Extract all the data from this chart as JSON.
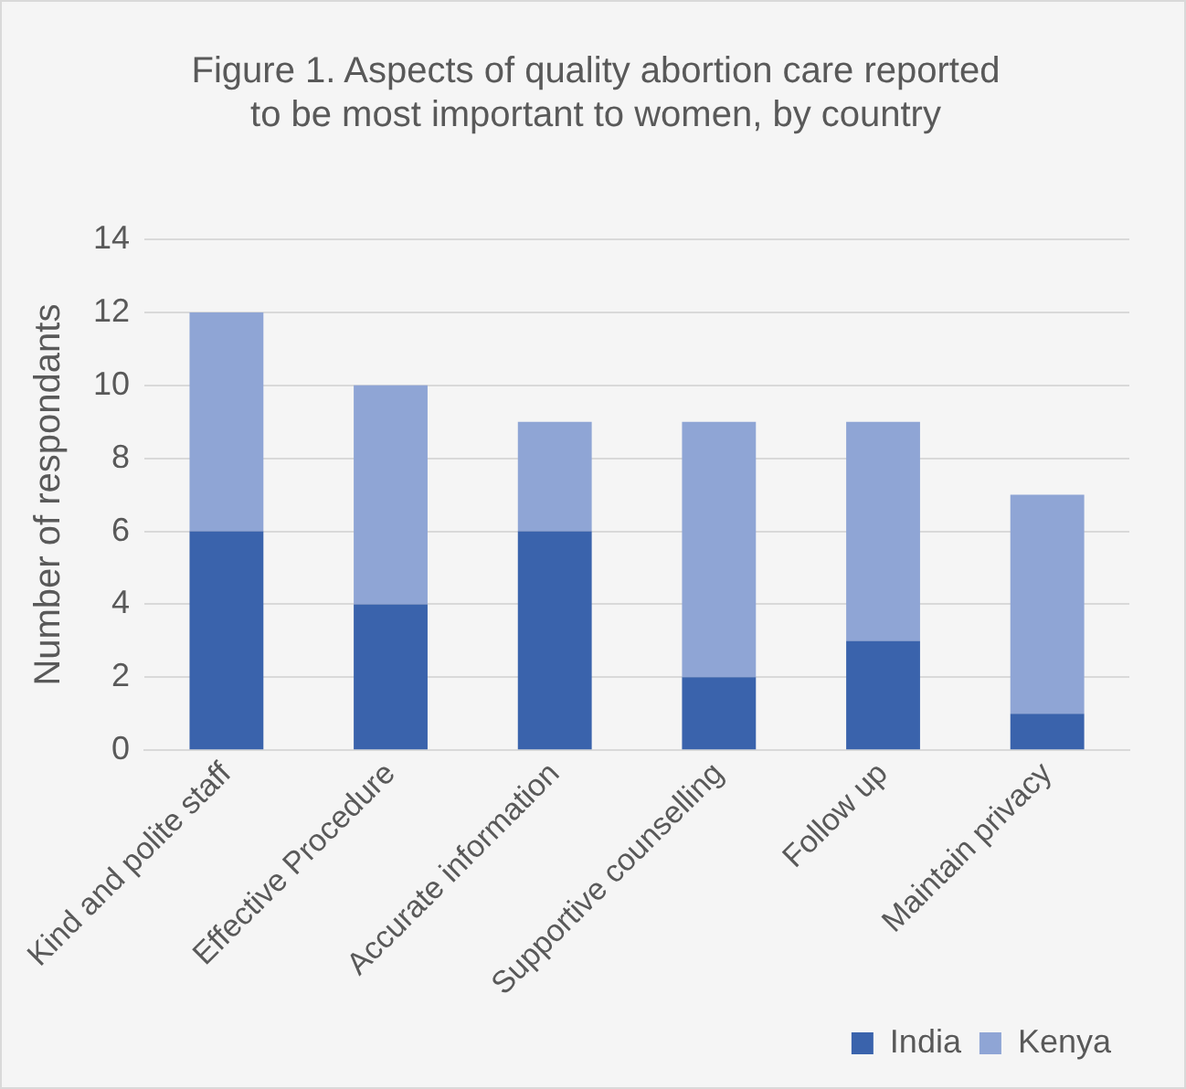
{
  "chart_data": {
    "type": "bar",
    "title": "Figure 1. Aspects of quality abortion care reported to be most important to women, by country",
    "ylabel": "Number of respondants",
    "categories": [
      "Kind and polite staff",
      "Effective Procedure",
      "Accurate information",
      "Supportive counselling",
      "Follow up",
      "Maintain privacy"
    ],
    "series": [
      {
        "name": "India",
        "color": "#3a63ac",
        "values": [
          6,
          4,
          6,
          2,
          3,
          1
        ]
      },
      {
        "name": "Kenya",
        "color": "#8fa5d5",
        "values": [
          6,
          6,
          3,
          7,
          6,
          6
        ]
      }
    ],
    "stacked": true,
    "ylim": [
      0,
      14
    ],
    "yticks": [
      0,
      2,
      4,
      6,
      8,
      10,
      12,
      14
    ],
    "grid": "y",
    "legend": "bottom right"
  }
}
